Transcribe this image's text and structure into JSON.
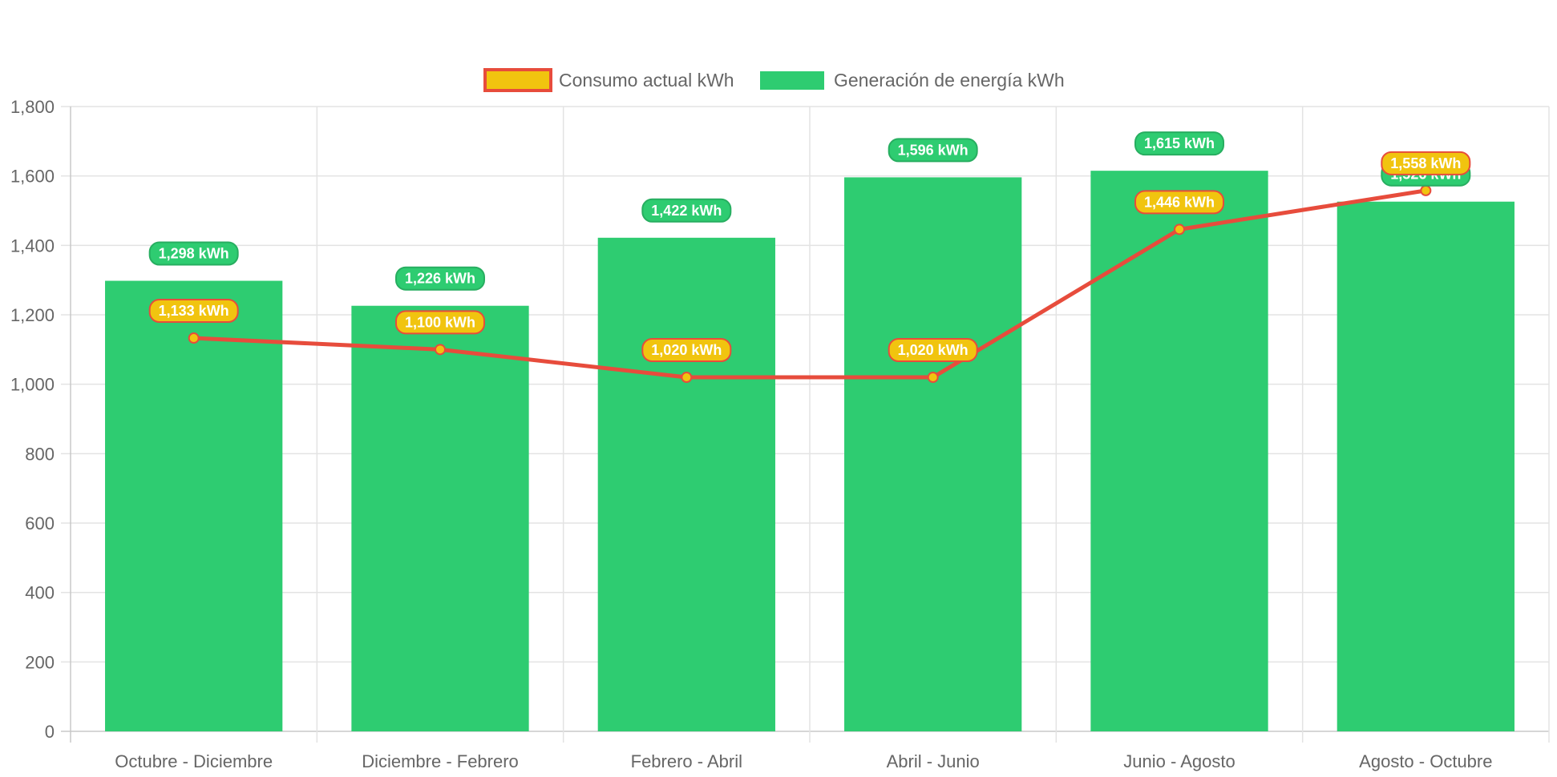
{
  "chart_data": {
    "type": "bar",
    "categories": [
      "Octubre - Diciembre",
      "Diciembre - Febrero",
      "Febrero - Abril",
      "Abril - Junio",
      "Junio - Agosto",
      "Agosto - Octubre"
    ],
    "series": [
      {
        "name": "Consumo actual kWh",
        "type": "line",
        "values": [
          1133,
          1100,
          1020,
          1020,
          1446,
          1558
        ],
        "labels": [
          "1,133 kWh",
          "1,100 kWh",
          "1,020 kWh",
          "1,020 kWh",
          "1,446 kWh",
          "1,558 kWh"
        ],
        "color": "#e74c3c",
        "fill": "#f1c40f"
      },
      {
        "name": "Generación de energía kWh",
        "type": "bar",
        "values": [
          1298,
          1226,
          1422,
          1596,
          1615,
          1526
        ],
        "labels": [
          "1,298 kWh",
          "1,226 kWh",
          "1,422 kWh",
          "1,596 kWh",
          "1,615 kWh",
          "1,526 kWh"
        ],
        "color": "#2ecc71",
        "border": "#27ae60"
      }
    ],
    "yticks": [
      "0",
      "200",
      "400",
      "600",
      "800",
      "1,000",
      "1,200",
      "1,400",
      "1,600",
      "1,800"
    ],
    "ylim": [
      0,
      1800
    ],
    "grid": true,
    "legend": "top"
  }
}
